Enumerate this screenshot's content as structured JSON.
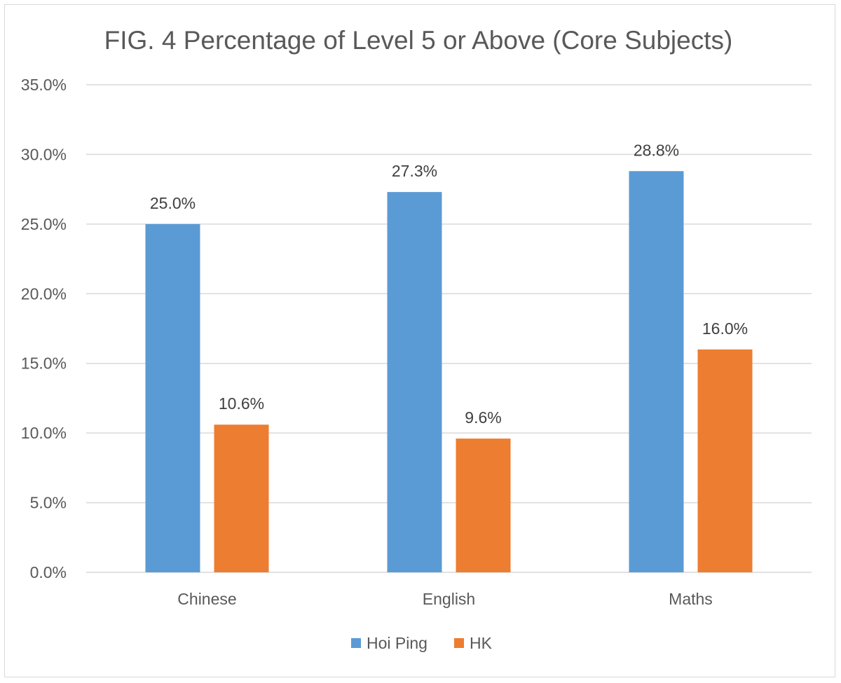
{
  "chart_data": {
    "type": "bar",
    "title": "FIG. 4 Percentage of Level 5 or Above (Core Subjects)",
    "xlabel": "",
    "ylabel": "",
    "categories": [
      "Chinese",
      "English",
      "Maths"
    ],
    "series": [
      {
        "name": "Hoi Ping",
        "color": "#5b9bd5",
        "values": [
          25.0,
          27.3,
          28.8
        ],
        "labels": [
          "25.0%",
          "27.3%",
          "28.8%"
        ]
      },
      {
        "name": "HK",
        "color": "#ed7d31",
        "values": [
          10.6,
          9.6,
          16.0
        ],
        "labels": [
          "10.6%",
          "9.6%",
          "16.0%"
        ]
      }
    ],
    "ylim": [
      0,
      35
    ],
    "yticks": [
      "0.0%",
      "5.0%",
      "10.0%",
      "15.0%",
      "20.0%",
      "25.0%",
      "30.0%",
      "35.0%"
    ],
    "grid": true,
    "legend": "bottom"
  }
}
